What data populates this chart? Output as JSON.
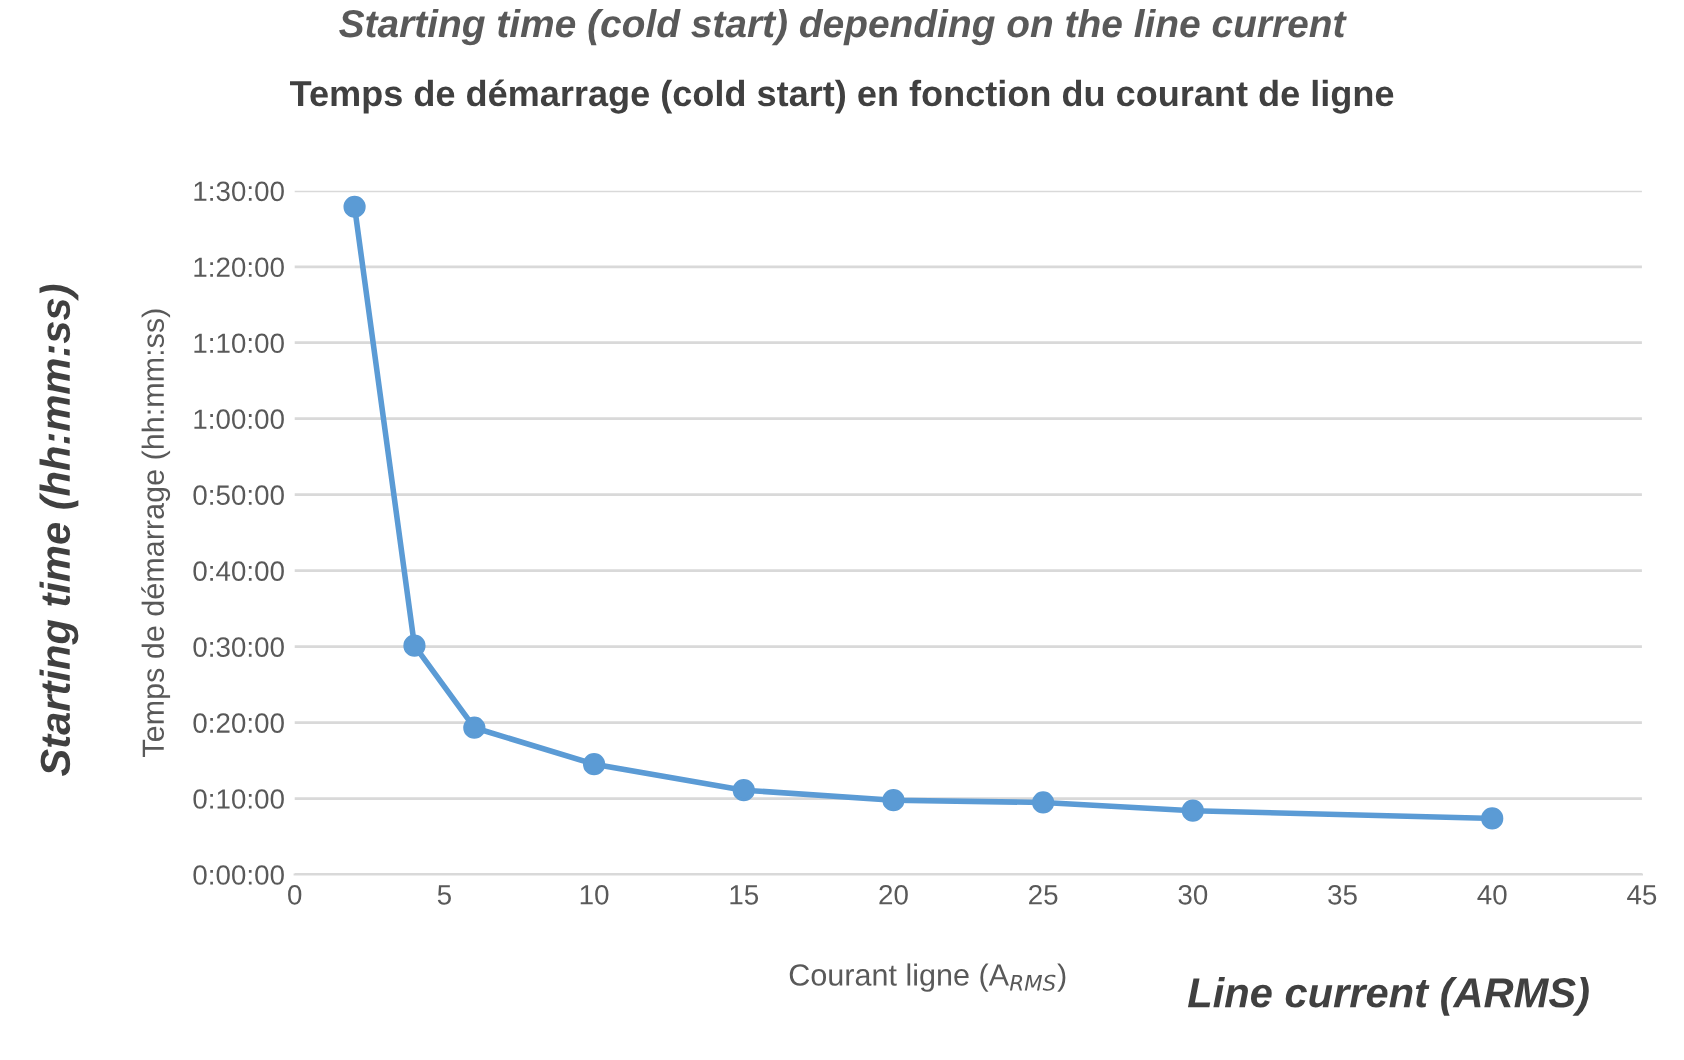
{
  "chart_data": {
    "type": "line",
    "title": "Starting time (cold start) depending on the line current",
    "subtitle": "Temps de démarrage (cold start) en fonction du courant de ligne",
    "xlabel": "Courant ligne (A$_{RMS}$)",
    "ylabel": "Temps de démarrage (hh:mm:ss)",
    "annotations": [
      "Starting time (hh:mm:ss)",
      "Line current (ARMS)"
    ],
    "x": [
      2,
      4,
      6,
      10,
      15,
      20,
      25,
      30,
      40
    ],
    "series": [
      {
        "color": "#5b9bd5",
        "values": [
          1.465,
          0.502,
          0.322,
          0.242,
          0.185,
          0.163,
          0.158,
          0.14,
          0.123
        ]
      }
    ],
    "xlim": [
      0,
      45
    ],
    "xticks": [
      0,
      5,
      10,
      15,
      20,
      25,
      30,
      35,
      40,
      45
    ],
    "ylim": [
      0,
      1.5
    ],
    "yticks": [
      {
        "value": 0,
        "label": "0:00:00"
      },
      {
        "value": 0.16667,
        "label": "0:10:00"
      },
      {
        "value": 0.33333,
        "label": "0:20:00"
      },
      {
        "value": 0.5,
        "label": "0:30:00"
      },
      {
        "value": 0.66667,
        "label": "0:40:00"
      },
      {
        "value": 0.83333,
        "label": "0:50:00"
      },
      {
        "value": 1,
        "label": "1:00:00"
      },
      {
        "value": 1.16667,
        "label": "1:10:00"
      },
      {
        "value": 1.33333,
        "label": "1:20:00"
      },
      {
        "value": 1.5,
        "label": "1:30:00"
      }
    ],
    "grid": "y",
    "marker": "circle",
    "line_style": "solid",
    "legend": false
  }
}
